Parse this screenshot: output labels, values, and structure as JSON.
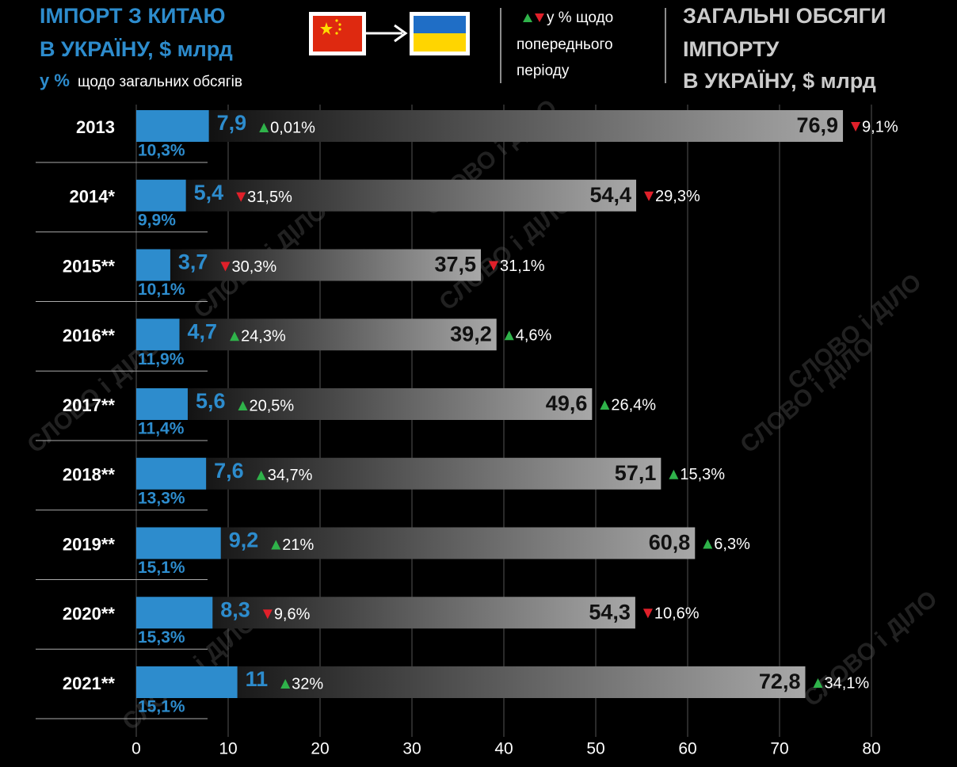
{
  "chart_data": {
    "type": "bar",
    "title_lines": [
      "ІМПОРТ З КИТАЮ",
      "В УКРАЇНУ, $ млрд"
    ],
    "share_note": {
      "unit": "у %",
      "text": "щодо загальних обсягів"
    },
    "change_note": [
      "у % щодо",
      "попереднього",
      "періоду"
    ],
    "total_title_lines": [
      "ЗАГАЛЬНІ ОБСЯГИ",
      "ІМПОРТУ",
      "В УКРАЇНУ, $ млрд"
    ],
    "watermark": "СЛОВО і ДІЛО",
    "categories": [
      "2013",
      "2014*",
      "2015**",
      "2016**",
      "2017**",
      "2018**",
      "2019**",
      "2020**",
      "2021**"
    ],
    "xlim": [
      0,
      80
    ],
    "xticks": [
      0,
      10,
      20,
      30,
      40,
      50,
      60,
      70,
      80
    ],
    "grid": true,
    "series": [
      {
        "color": "#2d8ccd",
        "values": [
          76.9,
          54.4,
          37.5,
          39.2,
          49.6,
          57.1,
          60.8,
          54.3,
          72.8
        ],
        "value_labels": [
          "76,9",
          "54,4",
          "37,5",
          "39,2",
          "49,6",
          "57,1",
          "60,8",
          "54,3",
          "72,8"
        ],
        "changes": [
          -9.1,
          -29.3,
          -31.1,
          4.6,
          26.4,
          15.3,
          6.3,
          -10.6,
          34.1
        ],
        "change_labels": [
          "9,1%",
          "29,3%",
          "31,1%",
          "4,6%",
          "26,4%",
          "15,3%",
          "6,3%",
          "10,6%",
          "34,1%"
        ]
      },
      {
        "color": "#2d8ccd",
        "values": [
          7.9,
          5.4,
          3.7,
          4.7,
          5.6,
          7.6,
          9.2,
          8.3,
          11
        ],
        "value_labels": [
          "7,9",
          "5,4",
          "3,7",
          "4,7",
          "5,6",
          "7,6",
          "9,2",
          "8,3",
          "11"
        ],
        "changes": [
          0.01,
          -31.5,
          -30.3,
          24.3,
          20.5,
          34.7,
          21,
          -9.6,
          32
        ],
        "change_labels": [
          "0,01%",
          "31,5%",
          "30,3%",
          "24,3%",
          "20,5%",
          "34,7%",
          "21%",
          "9,6%",
          "32%"
        ],
        "shares": [
          10.3,
          9.9,
          10.1,
          11.9,
          11.4,
          13.3,
          15.1,
          15.3,
          15.1
        ],
        "share_labels": [
          "10,3%",
          "9,9%",
          "10,1%",
          "11,9%",
          "11,4%",
          "13,3%",
          "15,1%",
          "15,3%",
          "15,1%"
        ]
      }
    ]
  }
}
